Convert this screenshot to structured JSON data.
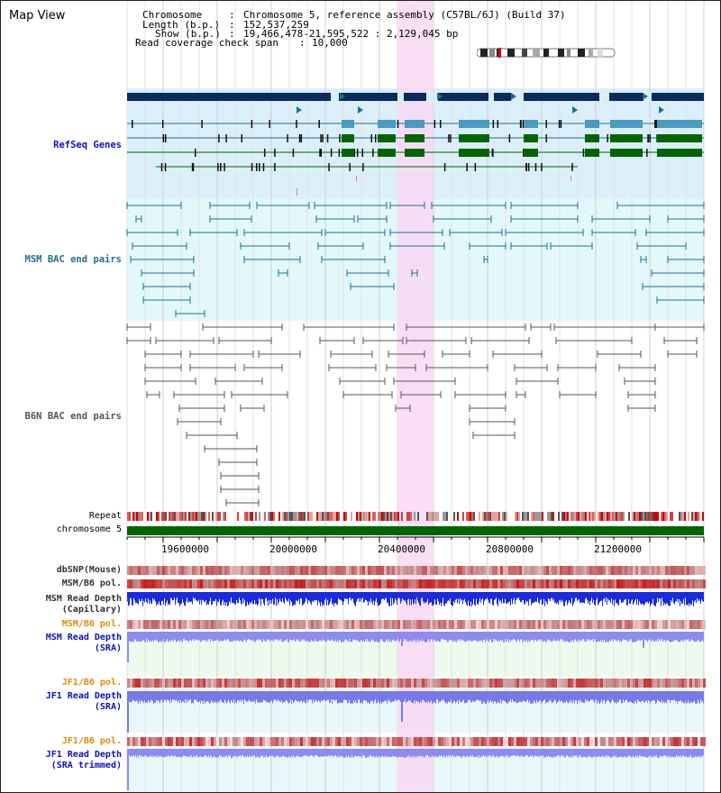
{
  "header": {
    "title": "Map View",
    "chromosome_label": "Chromosome",
    "chromosome_value": "Chromosome 5, reference assembly (C57BL/6J) (Build 37)",
    "length_label": "Length (b.p.)",
    "length_value": "152,537,259",
    "show_label": "Show (b.p.)",
    "show_value": "19,466,478-21,595,522 : 2,129,045 bp",
    "coverage_label": "Read coverage check span",
    "coverage_value": "10,000"
  },
  "tracks": {
    "refseq": "RefSeq Genes",
    "msm_bac": "MSM BAC end pairs",
    "b6n_bac": "B6N BAC end pairs",
    "repeat": "Repeat",
    "chromosome": "chromosome 5",
    "dbsnp": "dbSNP(Mouse)",
    "msm_b6_pol_1": "MSM/B6 pol.",
    "msm_read_depth_cap_1": "MSM Read Depth",
    "msm_read_depth_cap_2": "(Capillary)",
    "msm_b6_pol_2": "MSM/B6 pol.",
    "msm_read_depth_sra_1": "MSM Read Depth",
    "msm_read_depth_sra_2": "(SRA)",
    "jf1_b6_pol_1": "JF1/B6 pol.",
    "jf1_read_depth_sra_1": "JF1 Read Depth",
    "jf1_read_depth_sra_2": "(SRA)",
    "jf1_b6_pol_2": "JF1/B6 pol.",
    "jf1_read_depth_trim_1": "JF1 Read Depth",
    "jf1_read_depth_trim_2": "(SRA trimmed)"
  },
  "axis": {
    "ticks": [
      "19600000",
      "20000000",
      "20400000",
      "20800000",
      "21200000"
    ]
  },
  "colors": {
    "refseq_label": "#1010c0",
    "msm_bac_label": "#1f6f8f",
    "b6n_bac_label": "#555555",
    "pol_orange": "#e08a00",
    "depth_blue": "#1010c0",
    "highlight": "#f8d8f4",
    "refseq_bg": "#dbeffa",
    "msm_bg": "#e3f8fa",
    "chromosome_green": "#006400"
  }
}
